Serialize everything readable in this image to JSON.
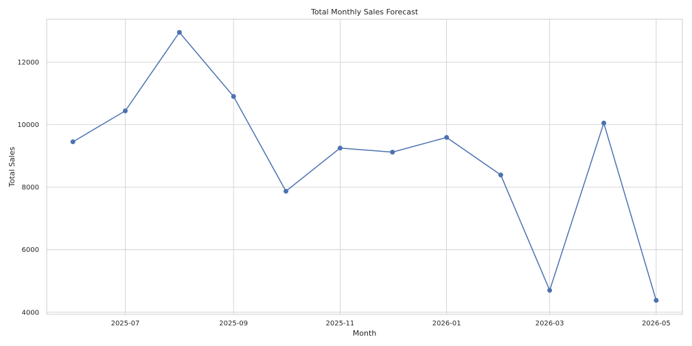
{
  "chart_data": {
    "type": "line",
    "title": "Total Monthly Sales Forecast",
    "xlabel": "Month",
    "ylabel": "Total Sales",
    "x": [
      "2025-06-01",
      "2025-07-01",
      "2025-08-01",
      "2025-09-01",
      "2025-10-01",
      "2025-11-01",
      "2025-12-01",
      "2026-01-01",
      "2026-02-01",
      "2026-03-01",
      "2026-04-01",
      "2026-05-01"
    ],
    "series": [
      {
        "values": [
          9450,
          10440,
          12950,
          10900,
          7870,
          9250,
          9120,
          9590,
          8390,
          4700,
          10050,
          4380
        ]
      }
    ],
    "xticks": [
      "2025-07",
      "2025-09",
      "2025-11",
      "2026-01",
      "2026-03",
      "2026-05"
    ],
    "xtick_dates": [
      "2025-07-01",
      "2025-09-01",
      "2025-11-01",
      "2026-01-01",
      "2026-03-01",
      "2026-05-01"
    ],
    "yticks": [
      4000,
      6000,
      8000,
      10000,
      12000
    ],
    "xlim": [
      "2025-05-17",
      "2026-05-16"
    ],
    "ylim": [
      3930,
      13370
    ],
    "grid": true,
    "color": "#4c72b0"
  }
}
